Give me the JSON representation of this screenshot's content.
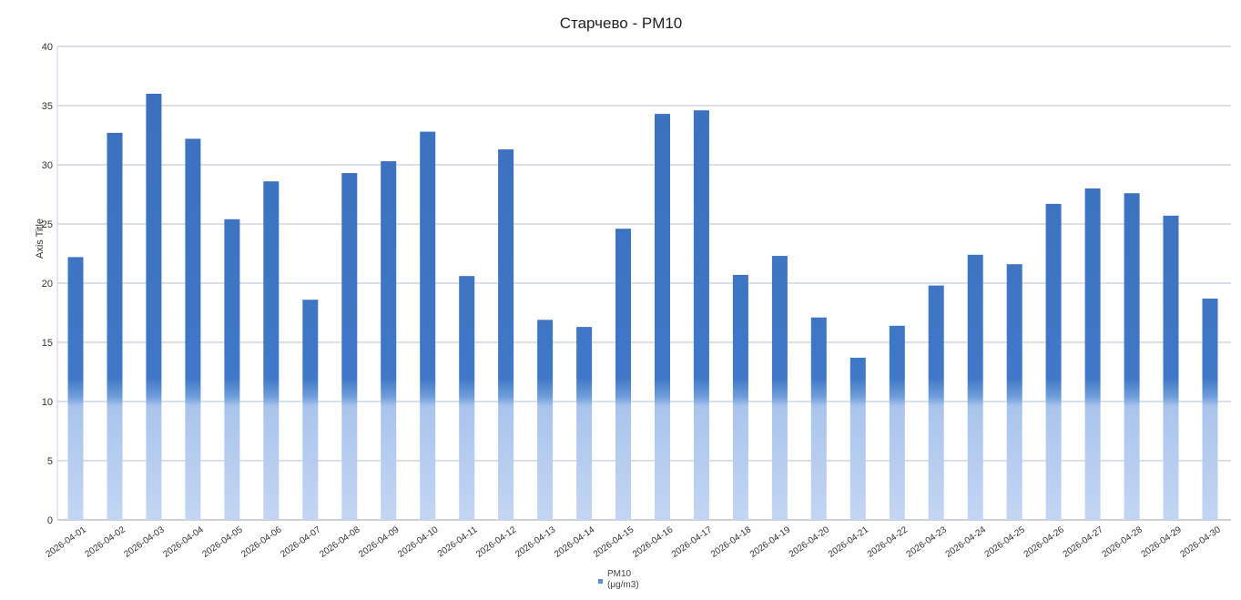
{
  "chart_data": {
    "type": "bar",
    "title": "Старчево - PM10",
    "ylabel": "Axis Title",
    "xlabel": "",
    "ylim": [
      0,
      40
    ],
    "yticks": [
      0,
      5,
      10,
      15,
      20,
      25,
      30,
      35,
      40
    ],
    "grid": true,
    "legend_position": "bottom",
    "legend_label": "PM10",
    "legend_sublabel": "(μg/m3)",
    "bar_color": "#3f76c2",
    "categories": [
      "2026-04-01",
      "2026-04-02",
      "2026-04-03",
      "2026-04-04",
      "2026-04-05",
      "2026-04-06",
      "2026-04-07",
      "2026-04-08",
      "2026-04-09",
      "2026-04-10",
      "2026-04-11",
      "2026-04-12",
      "2026-04-13",
      "2026-04-14",
      "2026-04-15",
      "2026-04-16",
      "2026-04-17",
      "2026-04-18",
      "2026-04-19",
      "2026-04-20",
      "2026-04-21",
      "2026-04-22",
      "2026-04-23",
      "2026-04-24",
      "2026-04-25",
      "2026-04-26",
      "2026-04-27",
      "2026-04-28",
      "2026-04-29",
      "2026-04-30"
    ],
    "series": [
      {
        "name": "PM10",
        "values": [
          22.2,
          32.7,
          36.0,
          32.2,
          25.4,
          28.6,
          18.6,
          29.3,
          30.3,
          32.8,
          20.6,
          31.3,
          16.9,
          16.3,
          24.6,
          34.3,
          34.6,
          20.7,
          22.3,
          17.1,
          13.7,
          16.4,
          19.8,
          22.4,
          21.6,
          26.7,
          28.0,
          27.6,
          25.7,
          18.7
        ]
      }
    ]
  }
}
